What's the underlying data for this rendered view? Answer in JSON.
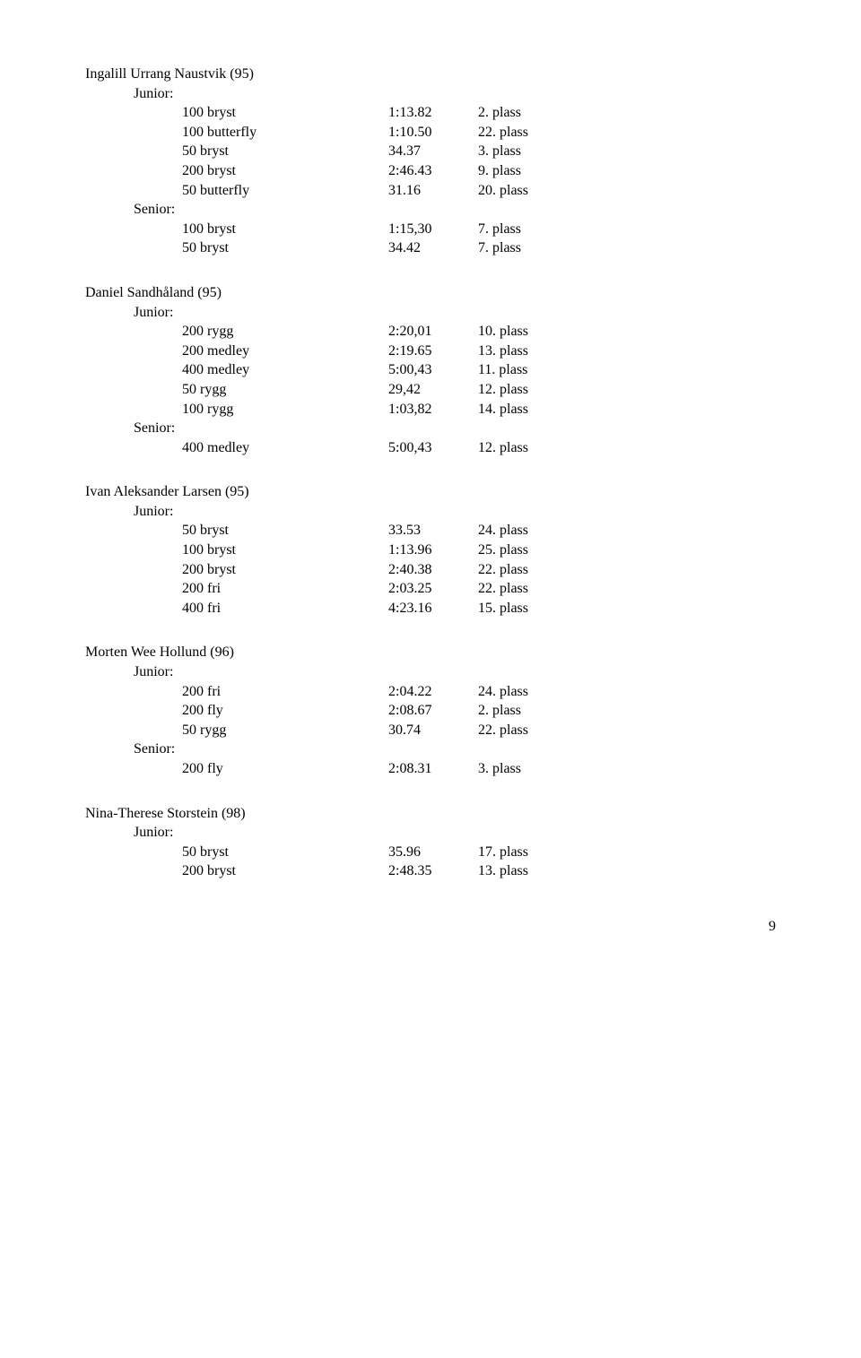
{
  "page_number": "9",
  "swimmers": [
    {
      "name": "Ingalill Urrang Naustvik (95)",
      "sections": [
        {
          "label": "Junior:",
          "rows": [
            {
              "event": "100 bryst",
              "time": "1:13.82",
              "place": "2. plass"
            },
            {
              "event": "100 butterfly",
              "time": "1:10.50",
              "place": "22. plass"
            },
            {
              "event": "50 bryst",
              "time": "34.37",
              "place": "3. plass"
            },
            {
              "event": "200 bryst",
              "time": "2:46.43",
              "place": "9. plass"
            },
            {
              "event": "50 butterfly",
              "time": "31.16",
              "place": "20. plass"
            }
          ]
        },
        {
          "label": "Senior:",
          "rows": [
            {
              "event": "100 bryst",
              "time": "1:15,30",
              "place": "7. plass"
            },
            {
              "event": "50 bryst",
              "time": "34.42",
              "place": "7. plass"
            }
          ]
        }
      ]
    },
    {
      "name": "Daniel Sandhåland (95)",
      "sections": [
        {
          "label": "Junior:",
          "rows": [
            {
              "event": "200 rygg",
              "time": "2:20,01",
              "place": "10. plass"
            },
            {
              "event": "200 medley",
              "time": "2:19.65",
              "place": "13. plass"
            },
            {
              "event": "400 medley",
              "time": "5:00,43",
              "place": "11. plass"
            },
            {
              "event": "50 rygg",
              "time": "29,42",
              "place": "12. plass"
            },
            {
              "event": "100 rygg",
              "time": "1:03,82",
              "place": "14. plass"
            }
          ]
        },
        {
          "label": "Senior:",
          "rows": [
            {
              "event": "400 medley",
              "time": "5:00,43",
              "place": "12. plass"
            }
          ]
        }
      ]
    },
    {
      "name": "Ivan Aleksander Larsen (95)",
      "sections": [
        {
          "label": "Junior:",
          "rows": [
            {
              "event": "50 bryst",
              "time": "33.53",
              "place": "24. plass"
            },
            {
              "event": "100 bryst",
              "time": "1:13.96",
              "place": "25. plass"
            },
            {
              "event": "200 bryst",
              "time": "2:40.38",
              "place": "22. plass"
            },
            {
              "event": "200 fri",
              "time": "2:03.25",
              "place": "22. plass"
            },
            {
              "event": "400 fri",
              "time": "4:23.16",
              "place": "15. plass"
            }
          ]
        }
      ]
    },
    {
      "name": "Morten Wee Hollund (96)",
      "sections": [
        {
          "label": "Junior:",
          "rows": [
            {
              "event": "200 fri",
              "time": "2:04.22",
              "place": "24. plass"
            },
            {
              "event": "200 fly",
              "time": "2:08.67",
              "place": "2. plass"
            },
            {
              "event": "50 rygg",
              "time": "30.74",
              "place": "22. plass"
            }
          ]
        },
        {
          "label": "Senior:",
          "rows": [
            {
              "event": "200 fly",
              "time": "2:08.31",
              "place": "3. plass"
            }
          ]
        }
      ]
    },
    {
      "name": "Nina-Therese Storstein (98)",
      "sections": [
        {
          "label": "Junior:",
          "rows": [
            {
              "event": "50 bryst",
              "time": "35.96",
              "place": "17. plass"
            },
            {
              "event": "200 bryst",
              "time": "2:48.35",
              "place": "13. plass"
            }
          ]
        }
      ]
    }
  ]
}
